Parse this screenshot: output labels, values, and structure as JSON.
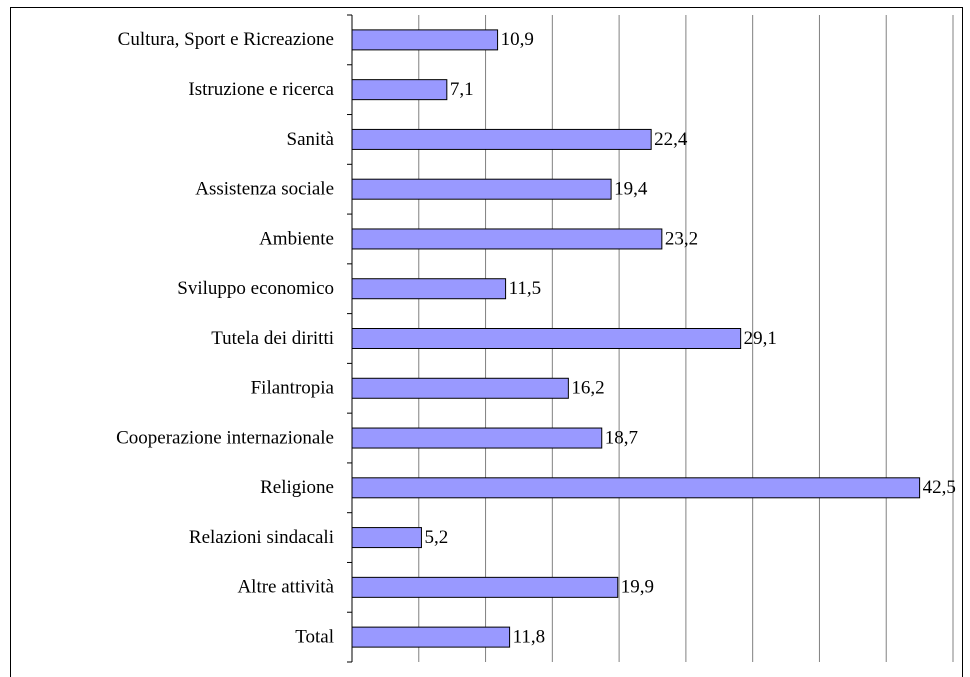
{
  "chart_data": {
    "type": "barh",
    "categories": [
      "Cultura, Sport e Ricreazione",
      "Istruzione e ricerca",
      "Sanità",
      "Assistenza sociale",
      "Ambiente",
      "Sviluppo economico",
      "Tutela dei diritti",
      "Filantropia",
      "Cooperazione internazionale",
      "Religione",
      "Relazioni sindacali",
      "Altre attività",
      "Total"
    ],
    "values": [
      10.9,
      7.1,
      22.4,
      19.4,
      23.2,
      11.5,
      29.1,
      16.2,
      18.7,
      42.5,
      5.2,
      19.9,
      11.8
    ],
    "value_labels": [
      "10,9",
      "7,1",
      "22,4",
      "19,4",
      "23,2",
      "11,5",
      "29,1",
      "16,2",
      "18,7",
      "42,5",
      "5,2",
      "19,9",
      "11,8"
    ],
    "color": "#9999ff",
    "xlim": [
      0,
      45
    ],
    "xticks": [
      0,
      5,
      10,
      15,
      20,
      25,
      30,
      35,
      40,
      45
    ],
    "grid": true
  }
}
